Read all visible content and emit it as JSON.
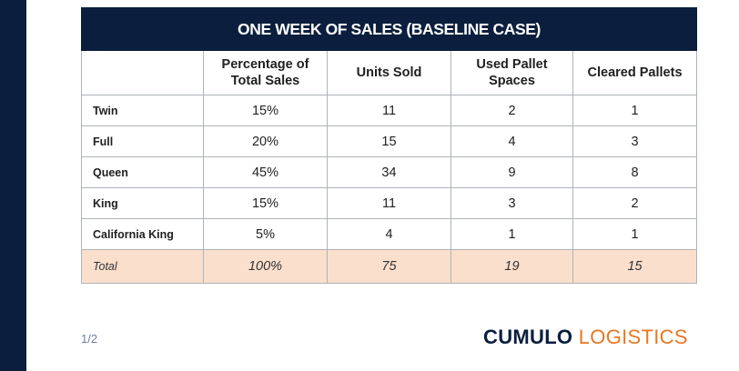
{
  "table": {
    "title": "ONE WEEK OF SALES (BASELINE CASE)",
    "headers": [
      "",
      "Percentage of Total Sales",
      "Units Sold",
      "Used Pallet Spaces",
      "Cleared Pallets"
    ],
    "rows": [
      {
        "label": "Twin",
        "percentage": "15%",
        "units": "11",
        "used": "2",
        "cleared": "1"
      },
      {
        "label": "Full",
        "percentage": "20%",
        "units": "15",
        "used": "4",
        "cleared": "3"
      },
      {
        "label": "Queen",
        "percentage": "45%",
        "units": "34",
        "used": "9",
        "cleared": "8"
      },
      {
        "label": "King",
        "percentage": "15%",
        "units": "11",
        "used": "3",
        "cleared": "2"
      },
      {
        "label": "California King",
        "percentage": "5%",
        "units": "4",
        "used": "1",
        "cleared": "1"
      }
    ],
    "total": {
      "label": "Total",
      "percentage": "100%",
      "units": "75",
      "used": "19",
      "cleared": "15"
    }
  },
  "footer": {
    "page_number": "1/2",
    "brand_strong": "CUMULO",
    "brand_light": "LOGISTICS"
  },
  "colors": {
    "navy": "#0b1e3d",
    "brand_orange": "#e87722",
    "total_row_bg": "#fbdfcd",
    "grid": "#aeb3b9"
  }
}
